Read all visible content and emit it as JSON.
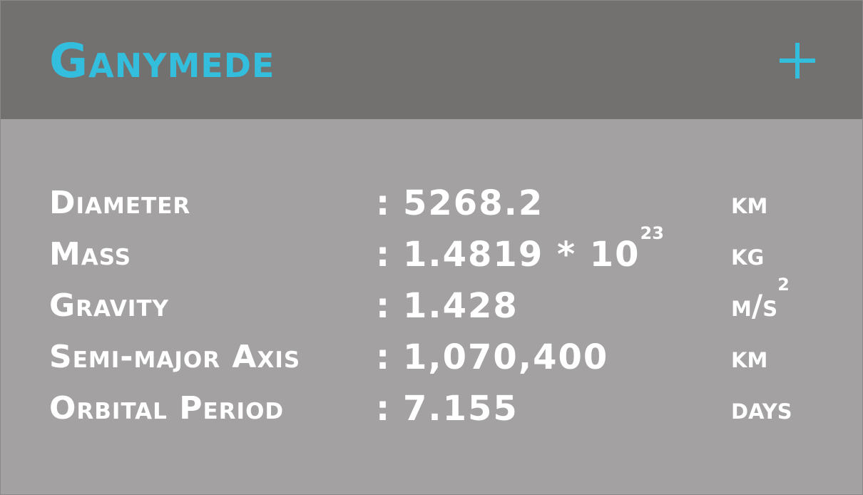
{
  "title": "Ganymede",
  "expand_icon": "plus-icon",
  "accent_color": "#33bedd",
  "header_color": "#737170",
  "body_color": "#a3a1a2",
  "stats": [
    {
      "label": "Diameter",
      "colon": ":",
      "value": "5268.2",
      "value_sup": "",
      "unit": "km",
      "unit_sup": ""
    },
    {
      "label": "Mass",
      "colon": ":",
      "value": "1.4819 * 10",
      "value_sup": "23",
      "unit": "kg",
      "unit_sup": ""
    },
    {
      "label": "Gravity",
      "colon": ":",
      "value": "1.428",
      "value_sup": "",
      "unit": "m/s",
      "unit_sup": "2"
    },
    {
      "label": "Semi-major Axis",
      "colon": ":",
      "value": "1,070,400",
      "value_sup": "",
      "unit": "km",
      "unit_sup": ""
    },
    {
      "label": "Orbital Period",
      "colon": ":",
      "value": "7.155",
      "value_sup": "",
      "unit": "days",
      "unit_sup": ""
    }
  ]
}
